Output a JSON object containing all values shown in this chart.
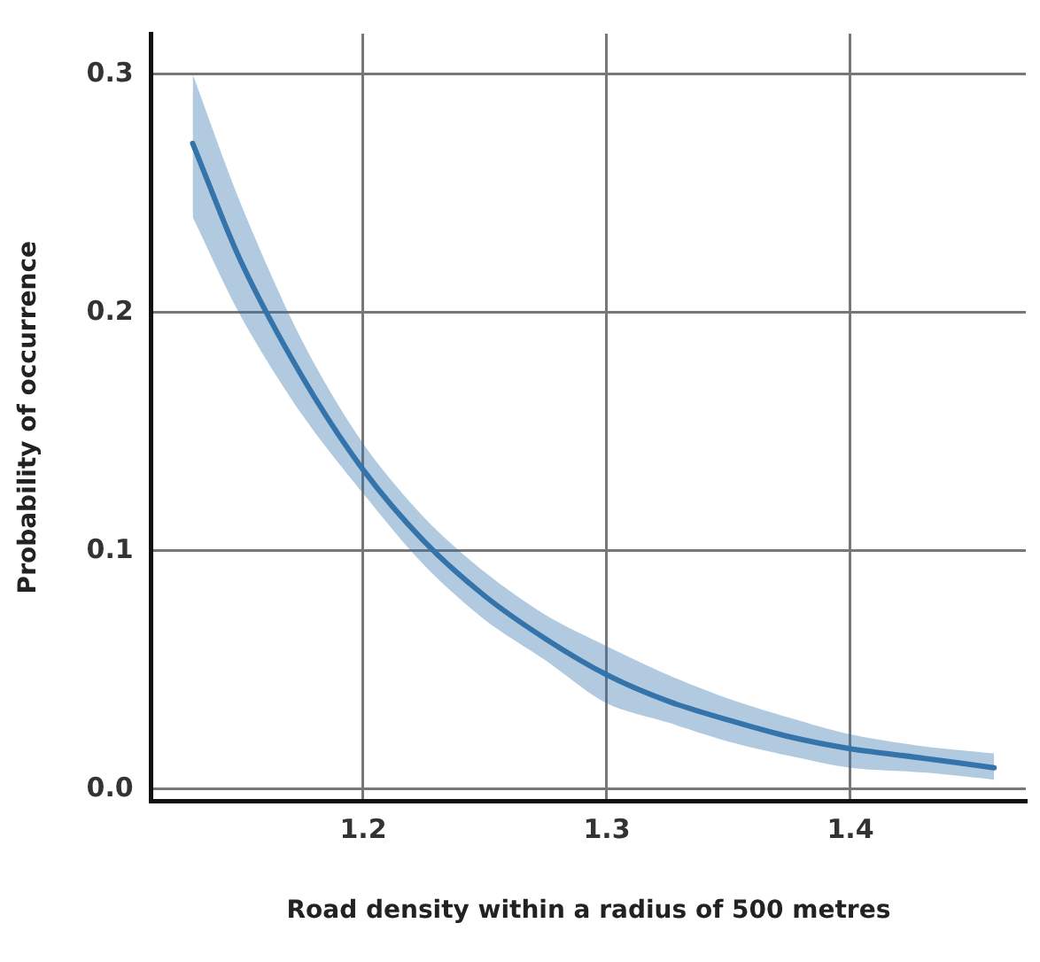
{
  "chart_data": {
    "type": "line",
    "xlabel": "Road density within a radius of 500 metres",
    "ylabel": "Probability of occurrence",
    "xlim": [
      1.113,
      1.472
    ],
    "xticks": [
      1.2,
      1.3,
      1.4
    ],
    "ylim": [
      -0.005,
      0.317
    ],
    "yticks": [
      {
        "value": 0,
        "label": "0.0"
      },
      0.1,
      0.2,
      0.3
    ],
    "grid": true,
    "marker": "none",
    "line_style": "solid",
    "series": [
      {
        "color": "#3474ac",
        "x": [
          1.13,
          1.15,
          1.175,
          1.2,
          1.225,
          1.25,
          1.275,
          1.3,
          1.325,
          1.35,
          1.375,
          1.4,
          1.43,
          1.459
        ],
        "values": [
          0.271,
          0.221,
          0.173,
          0.134,
          0.104,
          0.081,
          0.063,
          0.048,
          0.037,
          0.029,
          0.022,
          0.017,
          0.013,
          0.009
        ],
        "upper": [
          0.3,
          0.245,
          0.188,
          0.145,
          0.114,
          0.091,
          0.073,
          0.06,
          0.048,
          0.038,
          0.03,
          0.023,
          0.018,
          0.015
        ],
        "lower": [
          0.24,
          0.198,
          0.157,
          0.124,
          0.094,
          0.071,
          0.054,
          0.036,
          0.028,
          0.02,
          0.014,
          0.009,
          0.007,
          0.004
        ]
      }
    ]
  }
}
